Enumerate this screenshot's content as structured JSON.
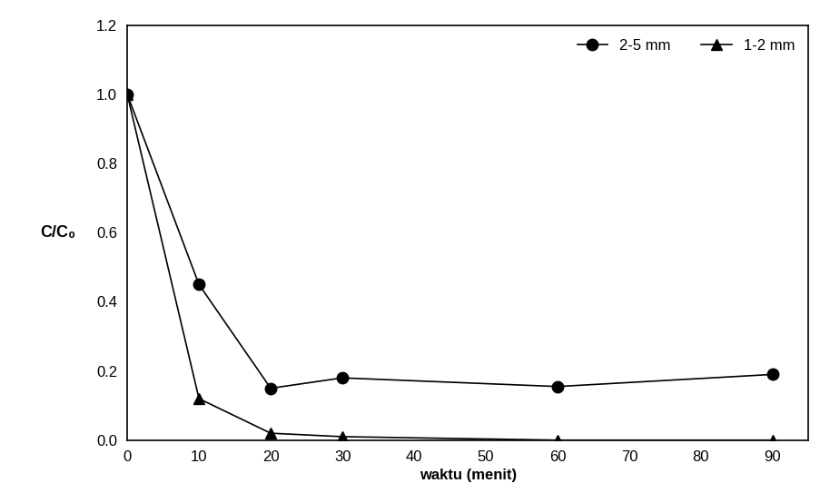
{
  "chart_data": {
    "type": "line",
    "x_label": "waktu (menit)",
    "y_label": "C/C₀",
    "x": [
      0,
      10,
      20,
      30,
      60,
      90
    ],
    "series": [
      {
        "name": "2-5 mm",
        "color": "#000000",
        "marker": "circle",
        "line_style": "solid",
        "values": [
          1.0,
          0.45,
          0.15,
          0.18,
          0.155,
          0.19
        ]
      },
      {
        "name": "1-2 mm",
        "color": "#000000",
        "marker": "triangle",
        "line_style": "solid",
        "values": [
          1.0,
          0.12,
          0.02,
          0.01,
          0.0,
          0.0
        ]
      }
    ],
    "xlim": [
      0,
      95
    ],
    "xticks": [
      0,
      10,
      20,
      30,
      40,
      50,
      60,
      70,
      80,
      90
    ],
    "ylim": [
      0,
      1.2
    ],
    "yticks": [
      0.0,
      0.2,
      0.4,
      0.6,
      0.8,
      1.0,
      1.2
    ],
    "grid": false,
    "legend": "upper right"
  }
}
